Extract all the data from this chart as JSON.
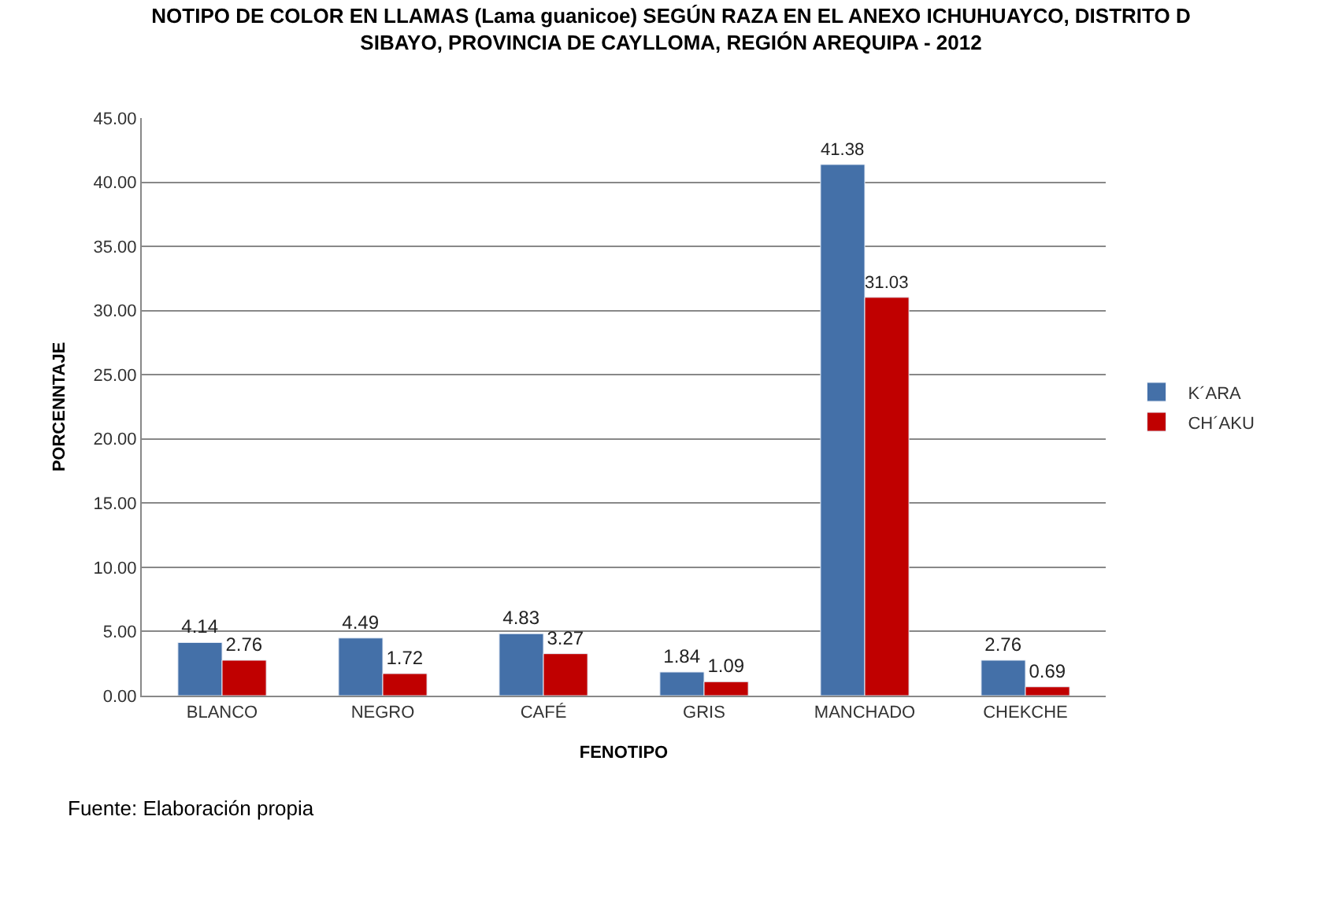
{
  "chart_data": {
    "type": "bar",
    "title": "NOTIPO DE COLOR EN LLAMAS (Lama guanicoe) SEGÚN RAZA EN EL ANEXO ICHUHUAYCO, DISTRITO D\nSIBAYO, PROVINCIA DE CAYLLOMA, REGIÓN AREQUIPA - 2012",
    "xlabel": "FENOTIPO",
    "ylabel": "PORCENNTAJE",
    "categories": [
      "BLANCO",
      "NEGRO",
      "CAFÉ",
      "GRIS",
      "MANCHADO",
      "CHEKCHE"
    ],
    "series": [
      {
        "name": "K´ARA",
        "color": "#4470a8",
        "values": [
          4.14,
          4.49,
          4.83,
          1.84,
          41.38,
          2.76
        ]
      },
      {
        "name": "CH´AKU",
        "color": "#c00000",
        "values": [
          2.76,
          1.72,
          3.27,
          1.09,
          31.03,
          0.69
        ]
      }
    ],
    "ylim": [
      0,
      45
    ],
    "yticks": [
      {
        "value": 0,
        "label": "0.00"
      },
      {
        "value": 5,
        "label": "5.00"
      },
      {
        "value": 10,
        "label": "10.00"
      },
      {
        "value": 15,
        "label": "15.00"
      },
      {
        "value": 20,
        "label": "20.00"
      },
      {
        "value": 25,
        "label": "25.00"
      },
      {
        "value": 30,
        "label": "30.00"
      },
      {
        "value": 35,
        "label": "35.00"
      },
      {
        "value": 40,
        "label": "40.00"
      },
      {
        "value": 45,
        "label": "45.00"
      }
    ],
    "grid": "y",
    "legend": "right",
    "data_labels": true,
    "annotations": [
      "Fuente: Elaboración propia"
    ]
  }
}
